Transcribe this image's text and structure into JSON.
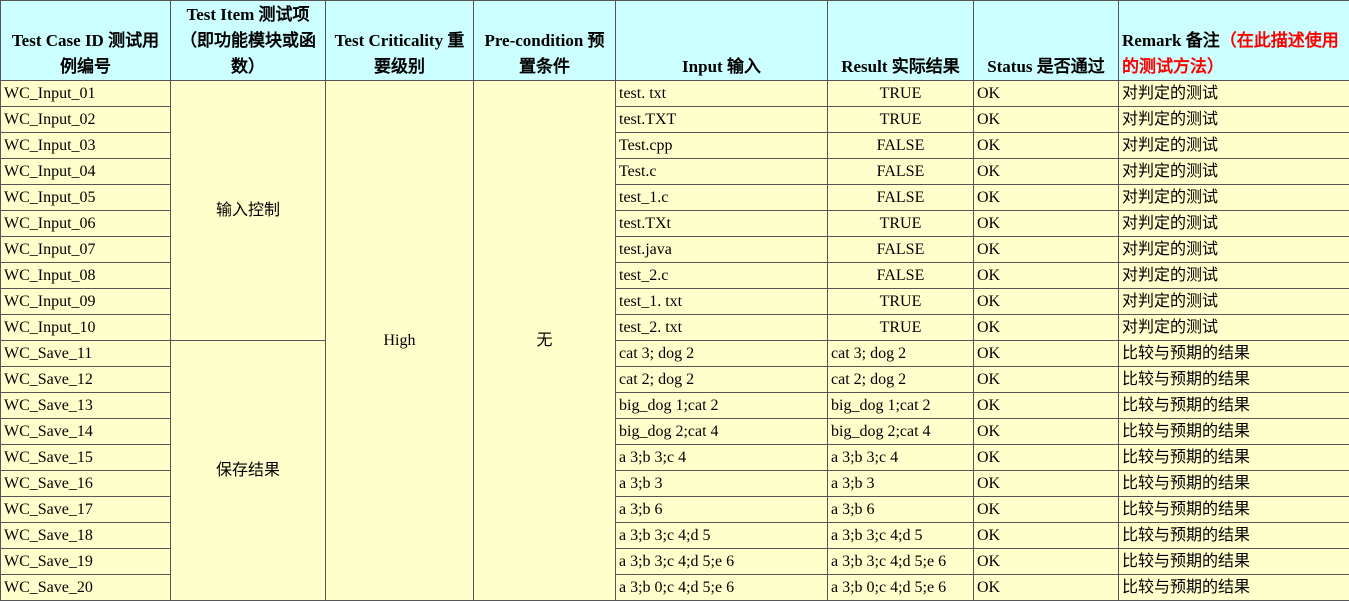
{
  "header": {
    "id": "Test Case ID 测试用例编号",
    "item": "Test Item 测试项（即功能模块或函数）",
    "criticality": "Test Criticality 重要级别",
    "precondition": "Pre-condition 预置条件",
    "input": "Input 输入",
    "result": "Result 实际结果",
    "status": "Status 是否通过",
    "remark": "Remark 备注",
    "remark_note": "（在此描述使用的测试方法）"
  },
  "criticality": "High",
  "precondition": "无",
  "groups": [
    {
      "item": "输入控制",
      "cases": [
        {
          "id": "WC_Input_01",
          "input": "test. txt",
          "result": "TRUE",
          "status": "OK",
          "remark": "对判定的测试"
        },
        {
          "id": "WC_Input_02",
          "input": "test.TXT",
          "result": "TRUE",
          "status": "OK",
          "remark": "对判定的测试"
        },
        {
          "id": "WC_Input_03",
          "input": "Test.cpp",
          "result": "FALSE",
          "status": "OK",
          "remark": "对判定的测试"
        },
        {
          "id": "WC_Input_04",
          "input": "Test.c",
          "result": "FALSE",
          "status": "OK",
          "remark": "对判定的测试"
        },
        {
          "id": "WC_Input_05",
          "input": "test_1.c",
          "result": "FALSE",
          "status": "OK",
          "remark": "对判定的测试"
        },
        {
          "id": "WC_Input_06",
          "input": "test.TXt",
          "result": "TRUE",
          "status": "OK",
          "remark": "对判定的测试"
        },
        {
          "id": "WC_Input_07",
          "input": "test.java",
          "result": "FALSE",
          "status": "OK",
          "remark": "对判定的测试"
        },
        {
          "id": "WC_Input_08",
          "input": "test_2.c",
          "result": "FALSE",
          "status": "OK",
          "remark": "对判定的测试"
        },
        {
          "id": "WC_Input_09",
          "input": "test_1. txt",
          "result": "TRUE",
          "status": "OK",
          "remark": "对判定的测试"
        },
        {
          "id": "WC_Input_10",
          "input": "test_2. txt",
          "result": "TRUE",
          "status": "OK",
          "remark": "对判定的测试"
        }
      ]
    },
    {
      "item": "保存结果",
      "cases": [
        {
          "id": "WC_Save_11",
          "input": "cat 3; dog 2",
          "result": "cat 3; dog 2",
          "status": "OK",
          "remark": "比较与预期的结果"
        },
        {
          "id": "WC_Save_12",
          "input": "cat 2; dog 2",
          "result": "cat 2; dog 2",
          "status": "OK",
          "remark": "比较与预期的结果"
        },
        {
          "id": "WC_Save_13",
          "input": "big_dog 1;cat 2",
          "result": "big_dog 1;cat 2",
          "status": "OK",
          "remark": "比较与预期的结果"
        },
        {
          "id": "WC_Save_14",
          "input": "big_dog 2;cat 4",
          "result": "big_dog 2;cat 4",
          "status": "OK",
          "remark": "比较与预期的结果"
        },
        {
          "id": "WC_Save_15",
          "input": "a 3;b 3;c 4",
          "result": "a 3;b 3;c 4",
          "status": "OK",
          "remark": "比较与预期的结果"
        },
        {
          "id": "WC_Save_16",
          "input": "a 3;b 3",
          "result": "a 3;b 3",
          "status": "OK",
          "remark": "比较与预期的结果"
        },
        {
          "id": "WC_Save_17",
          "input": "a 3;b 6",
          "result": "a 3;b 6",
          "status": "OK",
          "remark": "比较与预期的结果"
        },
        {
          "id": "WC_Save_18",
          "input": "a 3;b 3;c 4;d 5",
          "result": "a 3;b 3;c 4;d 5",
          "status": "OK",
          "remark": "比较与预期的结果"
        },
        {
          "id": "WC_Save_19",
          "input": "a 3;b 3;c 4;d 5;e 6",
          "result": "a 3;b 3;c 4;d 5;e 6",
          "status": "OK",
          "remark": "比较与预期的结果"
        },
        {
          "id": "WC_Save_20",
          "input": "a 3;b 0;c 4;d 5;e 6",
          "result": "a 3;b 0;c 4;d 5;e 6",
          "status": "OK",
          "remark": "比较与预期的结果"
        }
      ]
    }
  ]
}
